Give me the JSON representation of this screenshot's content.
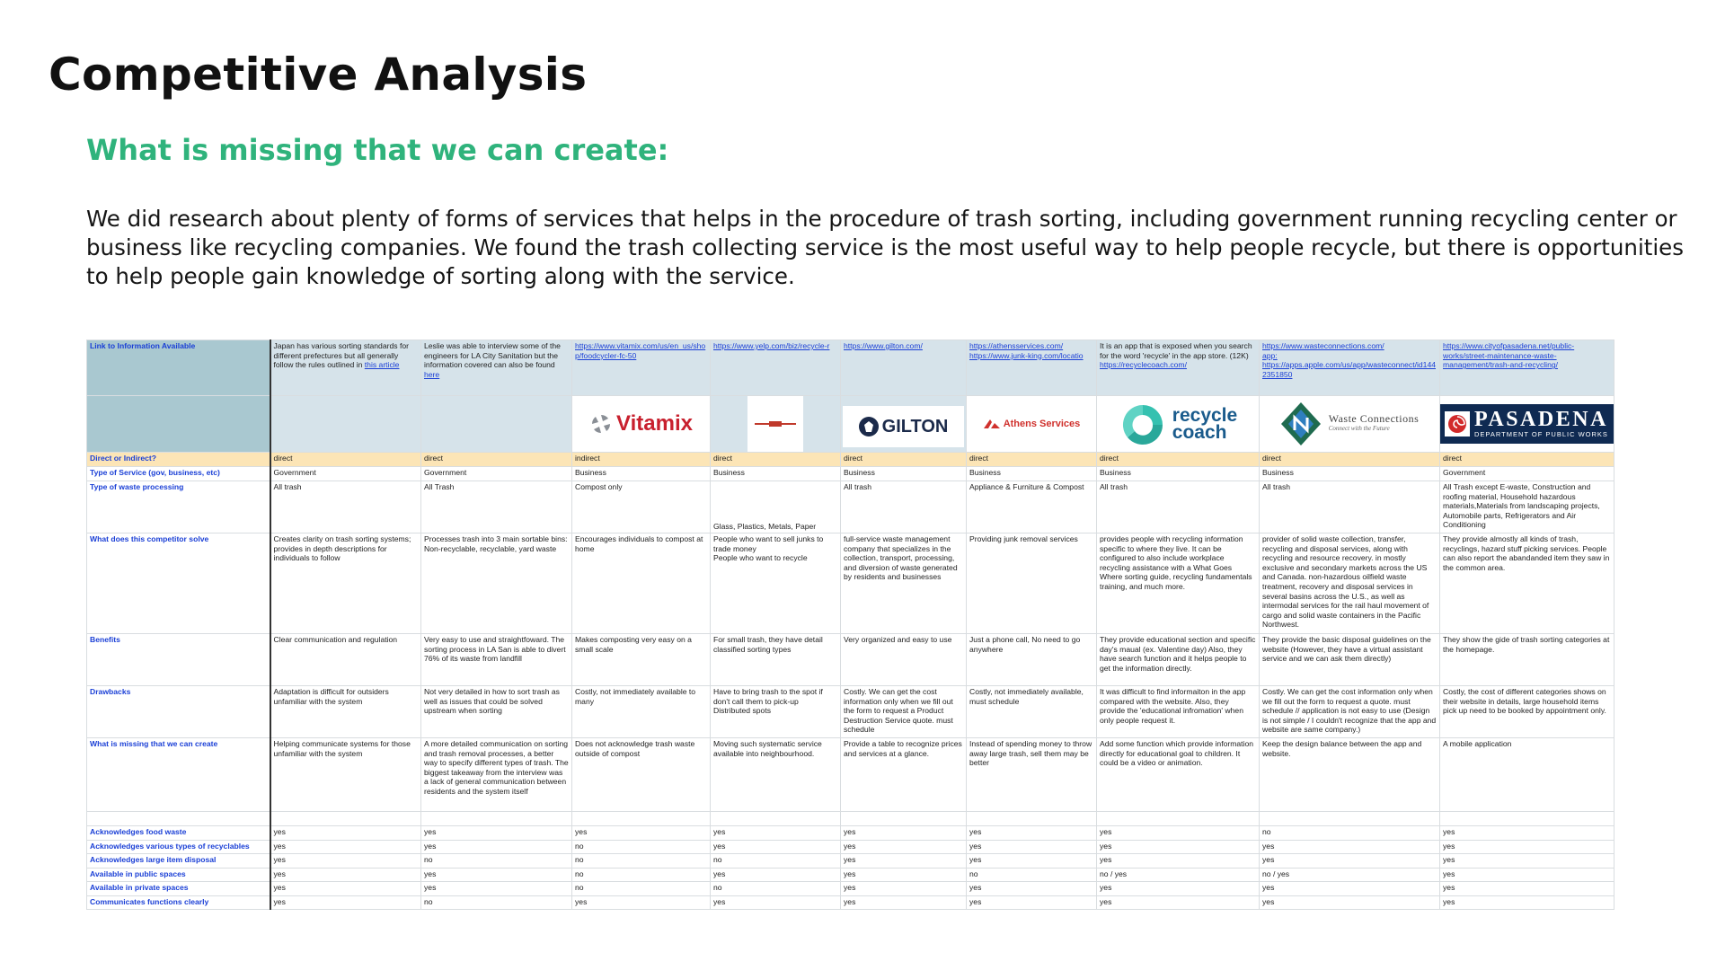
{
  "page": {
    "title": "Competitive Analysis",
    "subtitle": "What is missing that we can create:",
    "intro": "We did research about plenty of forms of services that helps in the procedure of trash sorting, including government running recycling center or business like recycling companies. We found the trash collecting service is the most useful way to help people recycle, but there is opportunities to help people gain knowledge of sorting along with the service."
  },
  "colors": {
    "accent_green": "#2fb37c",
    "label_blue": "#1a3fd6",
    "header_teal": "#d6e3ea",
    "direct_row": "#fce5b6"
  },
  "table": {
    "labels": {
      "link": "Link to Information Available",
      "direct": "Direct or Indirect?",
      "type": "Type of Service (gov, business, etc)",
      "waste": "Type of waste processing",
      "solve": "What does this competitor solve",
      "benefits": "Benefits",
      "drawbacks": "Drawbacks",
      "missing": "What is missing that we can create"
    },
    "logos": {
      "vitamix": "Vitamix",
      "gilton": "GILTON",
      "athens": "Athens Services",
      "recyclecoach_1": "recycle",
      "recyclecoach_2": "coach",
      "wc_name": "Waste Connections",
      "wc_tag": "Connect with the Future",
      "pasadena_name": "PASADENA",
      "pasadena_sub": "DEPARTMENT OF PUBLIC WORKS"
    },
    "columns": [
      {
        "link_pre": "Japan has various sorting standards for different prefectures but all generally follow the rules outlined in ",
        "link_url": "this article",
        "direct": "direct",
        "type": "Government",
        "waste": "All trash",
        "solve": "Creates clarity on trash sorting systems; provides in depth descriptions for individuals to follow",
        "benefits": "Clear communication and regulation",
        "drawbacks": "Adaptation is difficult for outsiders unfamiliar with the system",
        "missing": "Helping communicate systems for those unfamiliar with the system",
        "yn": [
          "yes",
          "yes",
          "yes",
          "yes",
          "yes",
          "yes"
        ]
      },
      {
        "link_pre": "Leslie was able to interview some of the engineers for LA City Sanitation but the information covered can also be found ",
        "link_url": "here",
        "direct": "direct",
        "type": "Government",
        "waste": "All Trash",
        "solve": "Processes trash into 3 main sortable bins: Non-recyclable, recyclable, yard waste",
        "benefits": "Very easy to use and straightfoward. The sorting process in LA San is able to divert 76% of its waste from landfill",
        "drawbacks": "Not very detailed in how to sort trash as well as issues that could be solved upstream when sorting",
        "missing": "A more detailed communication on sorting and trash removal processes, a better way to specify different types of trash. The biggest takeaway from the interview was a lack of general communication between residents and the system itself",
        "yn": [
          "yes",
          "yes",
          "no",
          "yes",
          "yes",
          "no"
        ]
      },
      {
        "link_pre": "",
        "link_url": "https://www.vitamix.com/us/en_us/shop/foodcycler-fc-50",
        "direct": "indirect",
        "type": "Business",
        "waste": "Compost only",
        "solve": "Encourages individuals to compost at home",
        "benefits": "Makes composting very easy on a small scale",
        "drawbacks": "Costly, not immediately available to many",
        "missing": "Does not acknowledge trash waste outside of compost",
        "yn": [
          "yes",
          "no",
          "no",
          "no",
          "no",
          "yes"
        ]
      },
      {
        "link_pre": "",
        "link_url": "https://www.yelp.com/biz/recycle-r",
        "direct": "direct",
        "type": "Business",
        "waste": "Glass, Plastics, Metals, Paper",
        "solve": "People who want to sell junks to trade money\nPeople who want to recycle",
        "benefits": "For small trash, they have detail classified sorting types",
        "drawbacks": "Have to bring trash to the spot if don't call them to pick-up\nDistributed spots",
        "missing": "Moving such systematic service available into neighbourhood.",
        "yn": [
          "yes",
          "yes",
          "no",
          "yes",
          "no",
          "yes"
        ]
      },
      {
        "link_pre": "",
        "link_url": "https://www.gilton.com/",
        "direct": "direct",
        "type": "Business",
        "waste": "All trash",
        "solve": "full-service waste management company that specializes in the collection, transport, processing, and diversion of waste generated by residents and businesses",
        "benefits": "Very organized and easy to use",
        "drawbacks": "Costly. We can get the cost information only when we fill out the form to request a Product Destruction Service quote. must schedule",
        "missing": "Provide a table to recognize prices and services at a glance.",
        "yn": [
          "yes",
          "yes",
          "yes",
          "yes",
          "yes",
          "yes"
        ]
      },
      {
        "link_pre": "",
        "link_url": "https://athensservices.com/\nhttps://www.junk-king.com/locatio",
        "direct": "direct",
        "type": "Business",
        "waste": "Appliance & Furniture & Compost",
        "solve": "Providing junk removal services",
        "benefits": "Just a phone call, No need to go anywhere",
        "drawbacks": "Costly, not immediately available, must schedule",
        "missing": "Instead of spending money to throw away large trash, sell them may be better",
        "yn": [
          "yes",
          "yes",
          "yes",
          "no",
          "yes",
          "yes"
        ]
      },
      {
        "link_pre": "It is an app that is exposed when you search for the word 'recycle' in the app store. (12K)\n",
        "link_url": "https://recyclecoach.com/",
        "direct": "direct",
        "type": "Business",
        "waste": "All trash",
        "solve": "provides people with recycling information specific to where they live. It can be configured to also include workplace recycling assistance with a What Goes Where sorting guide, recycling fundamentals training, and much more.",
        "benefits": "They provide educational section and specific day's maual (ex. Valentine day) Also, they have search function and it helps people to get the information directly.",
        "drawbacks": "It was difficult to find informaiton in the app compared with the website. Also, they provide the 'educational infromation' when only people request it.",
        "missing": "Add some function which provide information directly for educational goal to children. It could be a video or animation.",
        "yn": [
          "yes",
          "yes",
          "yes",
          "no / yes",
          "yes",
          "yes"
        ]
      },
      {
        "link_pre": "",
        "link_url": "https://www.wasteconnections.com/\napp: https://apps.apple.com/us/app/wasteconnect/id1442351850",
        "direct": "direct",
        "type": "Business",
        "waste": "All trash",
        "solve": "provider of solid waste collection, transfer, recycling and disposal services, along with recycling and resource recovery. in mostly exclusive and secondary markets across the US and Canada. non-hazardous oilfield waste treatment, recovery and disposal services in several basins across the U.S., as well as intermodal services for the rail haul movement of cargo and solid waste containers in the Pacific Northwest.",
        "benefits": "They provide the basic disposal guidelines on the website (However, they have a virtual assistant service and we can ask them directly)",
        "drawbacks": "Costly. We can get the cost information only when we fill out the form to request a quote. must schedule // application is not easy to use (Design is not simple / I couldn't recognize that the app and website are same company.)",
        "missing": "Keep the design balance between the app and website.",
        "yn": [
          "no",
          "yes",
          "yes",
          "no / yes",
          "yes",
          "yes"
        ]
      },
      {
        "link_pre": "",
        "link_url": "https://www.cityofpasadena.net/public-works/street-maintenance-waste-management/trash-and-recycling/",
        "direct": "direct",
        "type": "Government",
        "waste": "All Trash except E-waste, Construction and roofing material, Household hazardous materials,Materials from landscaping projects, Automobile parts, Refrigerators and Air Conditioning",
        "solve": "They provide almostly all kinds of trash, recyclings, hazard stuff picking services. People can also report the abandanded item they saw in the common area.",
        "benefits": "They show the gide of trash sorting categories at the homepage.",
        "drawbacks": "Costly, the cost of different categories shows on their website in details, large household items pick up need to be booked by appointment only.",
        "missing": "A mobile application",
        "yn": [
          "yes",
          "yes",
          "yes",
          "yes",
          "yes",
          "yes"
        ]
      }
    ],
    "yn_labels": [
      "Acknowledges food waste",
      "Acknowledges various types of recyclables",
      "Acknowledges large item disposal",
      "Available in public spaces",
      "Available in private spaces",
      "Communicates functions clearly"
    ]
  }
}
